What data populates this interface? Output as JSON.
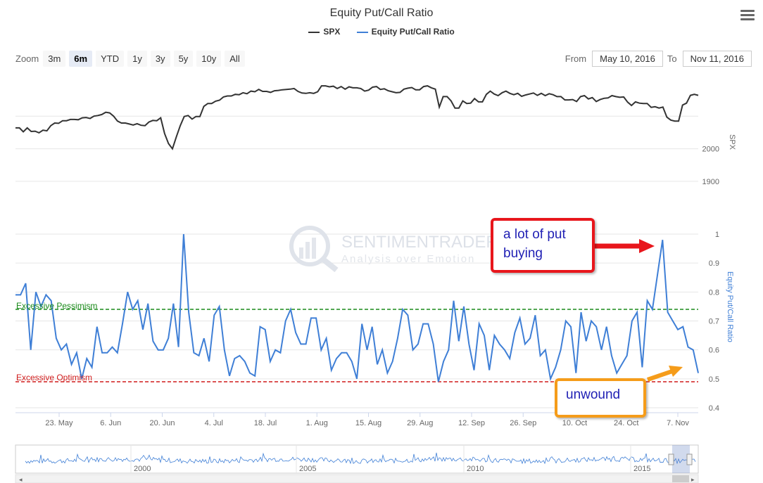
{
  "title": "Equity Put/Call Ratio",
  "legend": [
    {
      "name": "SPX",
      "color": "#333333"
    },
    {
      "name": "Equity Put/Call Ratio",
      "color": "#3f7fd6"
    }
  ],
  "zoom": {
    "label": "Zoom",
    "buttons": [
      "3m",
      "6m",
      "YTD",
      "1y",
      "3y",
      "5y",
      "10y",
      "All"
    ],
    "active": "6m"
  },
  "range": {
    "from_label": "From",
    "from_value": "May 10, 2016",
    "to_label": "To",
    "to_value": "Nov 11, 2016"
  },
  "watermark": {
    "brand": "SENTIMENTRADER",
    "tagline": "Analysis over Emotion"
  },
  "annotations": {
    "callout_1": "a lot of put buying",
    "callout_2": "unwound",
    "pessimism_label": "Excessive Pessimism",
    "optimism_label": "Excessive Optimism"
  },
  "navigator": {
    "labels": [
      "2000",
      "2005",
      "2010",
      "2015"
    ]
  },
  "chart_data": [
    {
      "type": "line",
      "name": "SPX",
      "ylabel": "SPX",
      "y_ticks": [
        1900,
        2000
      ],
      "ylim": [
        1820,
        2230
      ],
      "color": "#333333",
      "values": [
        2064,
        2064,
        2052,
        2064,
        2053,
        2054,
        2049,
        2057,
        2055,
        2071,
        2079,
        2078,
        2086,
        2086,
        2090,
        2090,
        2089,
        2095,
        2096,
        2093,
        2100,
        2102,
        2105,
        2112,
        2110,
        2100,
        2085,
        2079,
        2079,
        2076,
        2073,
        2077,
        2072,
        2071,
        2082,
        2087,
        2086,
        2095,
        2047,
        2016,
        2000,
        2037,
        2071,
        2099,
        2102,
        2091,
        2099,
        2099,
        2130,
        2139,
        2139,
        2146,
        2149,
        2159,
        2162,
        2162,
        2167,
        2166,
        2172,
        2169,
        2177,
        2175,
        2182,
        2176,
        2176,
        2173,
        2178,
        2179,
        2181,
        2182,
        2183,
        2185,
        2176,
        2171,
        2170,
        2172,
        2170,
        2175,
        2193,
        2193,
        2190,
        2192,
        2185,
        2191,
        2183,
        2190,
        2187,
        2187,
        2185,
        2177,
        2180,
        2189,
        2191,
        2182,
        2184,
        2178,
        2175,
        2172,
        2173,
        2183,
        2186,
        2188,
        2181,
        2181,
        2191,
        2193,
        2187,
        2183,
        2128,
        2160,
        2160,
        2147,
        2125,
        2125,
        2147,
        2139,
        2140,
        2154,
        2144,
        2144,
        2167,
        2177,
        2168,
        2163,
        2172,
        2177,
        2170,
        2166,
        2170,
        2161,
        2165,
        2168,
        2171,
        2164,
        2170,
        2163,
        2169,
        2166,
        2160,
        2160,
        2150,
        2150,
        2151,
        2145,
        2160,
        2163,
        2153,
        2157,
        2145,
        2151,
        2155,
        2156,
        2163,
        2160,
        2158,
        2159,
        2143,
        2133,
        2144,
        2140,
        2139,
        2139,
        2127,
        2129,
        2125,
        2128,
        2097,
        2088,
        2085,
        2085,
        2134,
        2140,
        2164,
        2167,
        2164
      ],
      "x_ticks": [
        "23. May",
        "6. Jun",
        "20. Jun",
        "4. Jul",
        "18. Jul",
        "1. Aug",
        "15. Aug",
        "29. Aug",
        "12. Sep",
        "26. Sep",
        "10. Oct",
        "24. Oct",
        "7. Nov"
      ]
    },
    {
      "type": "line",
      "name": "Equity Put/Call Ratio",
      "ylabel": "Equity Put/Call Ratio",
      "y_ticks": [
        0.4,
        0.5,
        0.6,
        0.7,
        0.8,
        0.9,
        1
      ],
      "ylim": [
        0.4,
        1.0
      ],
      "color": "#3f7fd6",
      "reference_lines": [
        {
          "label": "Excessive Pessimism",
          "value": 0.74,
          "color": "#1a8a1a"
        },
        {
          "label": "Excessive Optimism",
          "value": 0.49,
          "color": "#d01c1c"
        }
      ],
      "values": [
        0.79,
        0.79,
        0.83,
        0.6,
        0.8,
        0.75,
        0.79,
        0.77,
        0.64,
        0.6,
        0.62,
        0.55,
        0.59,
        0.5,
        0.57,
        0.54,
        0.68,
        0.59,
        0.59,
        0.61,
        0.59,
        0.69,
        0.8,
        0.74,
        0.77,
        0.67,
        0.76,
        0.63,
        0.6,
        0.6,
        0.64,
        0.76,
        0.61,
        1.0,
        0.73,
        0.59,
        0.58,
        0.64,
        0.56,
        0.72,
        0.75,
        0.6,
        0.51,
        0.57,
        0.58,
        0.56,
        0.52,
        0.51,
        0.68,
        0.67,
        0.56,
        0.6,
        0.59,
        0.7,
        0.74,
        0.66,
        0.62,
        0.62,
        0.71,
        0.71,
        0.6,
        0.64,
        0.53,
        0.57,
        0.59,
        0.59,
        0.56,
        0.5,
        0.69,
        0.6,
        0.68,
        0.55,
        0.6,
        0.52,
        0.56,
        0.64,
        0.74,
        0.72,
        0.6,
        0.62,
        0.69,
        0.69,
        0.62,
        0.49,
        0.56,
        0.6,
        0.77,
        0.63,
        0.75,
        0.62,
        0.53,
        0.69,
        0.65,
        0.53,
        0.65,
        0.62,
        0.6,
        0.57,
        0.66,
        0.71,
        0.62,
        0.64,
        0.72,
        0.58,
        0.6,
        0.5,
        0.54,
        0.6,
        0.7,
        0.68,
        0.52,
        0.73,
        0.63,
        0.7,
        0.68,
        0.6,
        0.68,
        0.58,
        0.52,
        0.55,
        0.58,
        0.7,
        0.73,
        0.54,
        0.77,
        0.74,
        0.86,
        0.98,
        0.73,
        0.7,
        0.67,
        0.68,
        0.61,
        0.6,
        0.52
      ]
    }
  ]
}
